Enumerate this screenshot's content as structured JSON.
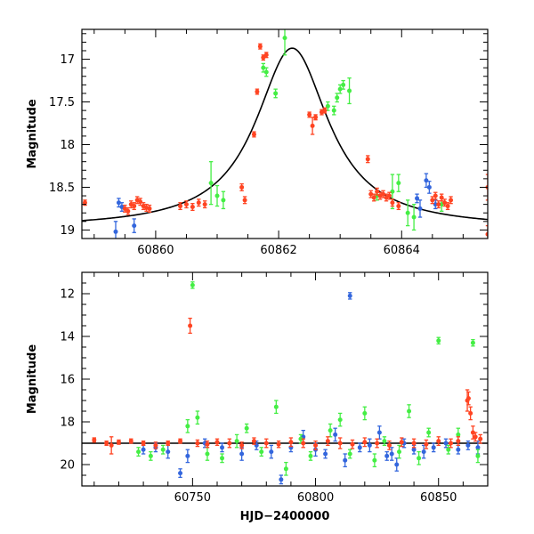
{
  "chart_data": [
    {
      "type": "scatter",
      "title": "",
      "xlabel": "",
      "ylabel": "Magnitude",
      "xlim": [
        60858.8,
        60865.4
      ],
      "ylim": [
        19.1,
        16.65
      ],
      "y_inverted": true,
      "grid": false,
      "legend": "none",
      "x_ticks": [
        "60860",
        "60862",
        "60864"
      ],
      "y_ticks": [
        "17",
        "17.5",
        "18",
        "18.5",
        "19"
      ],
      "model_curve": {
        "name": "",
        "color": "#000000",
        "peak_x": 60862.22,
        "peak_mag": 16.87,
        "baseline_mag": 18.98,
        "width_days": 0.72
      },
      "series": [
        {
          "color": "#3366dd",
          "points": [
            [
              60859.35,
              19.02,
              0.12
            ],
            [
              60859.4,
              18.68,
              0.05
            ],
            [
              60859.45,
              18.73,
              0.05
            ],
            [
              60859.65,
              18.95,
              0.08
            ],
            [
              60864.25,
              18.63,
              0.05
            ],
            [
              60864.3,
              18.75,
              0.1
            ],
            [
              60864.4,
              18.42,
              0.08
            ],
            [
              60864.45,
              18.5,
              0.07
            ],
            [
              60864.55,
              18.7,
              0.05
            ]
          ]
        },
        {
          "color": "#44ee44",
          "points": [
            [
              60860.9,
              18.45,
              0.25
            ],
            [
              60861.0,
              18.6,
              0.12
            ],
            [
              60861.1,
              18.65,
              0.1
            ],
            [
              60861.75,
              17.1,
              0.05
            ],
            [
              60861.8,
              17.15,
              0.05
            ],
            [
              60861.95,
              17.4,
              0.05
            ],
            [
              60862.1,
              16.75,
              0.2
            ],
            [
              60862.8,
              17.55,
              0.05
            ],
            [
              60862.9,
              17.6,
              0.05
            ],
            [
              60862.95,
              17.45,
              0.05
            ],
            [
              60863.0,
              17.35,
              0.05
            ],
            [
              60863.05,
              17.3,
              0.05
            ],
            [
              60863.15,
              17.37,
              0.15
            ],
            [
              60863.6,
              18.6,
              0.05
            ],
            [
              60863.85,
              18.55,
              0.2
            ],
            [
              60863.95,
              18.45,
              0.1
            ],
            [
              60864.1,
              18.8,
              0.15
            ],
            [
              60864.2,
              18.85,
              0.15
            ],
            [
              60864.65,
              18.7,
              0.08
            ]
          ]
        },
        {
          "color": "#ff4422",
          "points": [
            [
              60858.85,
              18.68,
              0.03
            ],
            [
              60859.5,
              18.75,
              0.04
            ],
            [
              60859.55,
              18.78,
              0.04
            ],
            [
              60859.6,
              18.7,
              0.04
            ],
            [
              60859.65,
              18.72,
              0.04
            ],
            [
              60859.7,
              18.65,
              0.04
            ],
            [
              60859.75,
              18.67,
              0.04
            ],
            [
              60859.8,
              18.72,
              0.04
            ],
            [
              60859.85,
              18.74,
              0.04
            ],
            [
              60859.9,
              18.75,
              0.04
            ],
            [
              60860.4,
              18.72,
              0.04
            ],
            [
              60860.5,
              18.7,
              0.04
            ],
            [
              60860.6,
              18.73,
              0.04
            ],
            [
              60860.7,
              18.68,
              0.04
            ],
            [
              60860.8,
              18.7,
              0.04
            ],
            [
              60861.4,
              18.5,
              0.04
            ],
            [
              60861.45,
              18.65,
              0.04
            ],
            [
              60861.6,
              17.88,
              0.03
            ],
            [
              60861.65,
              17.38,
              0.03
            ],
            [
              60861.7,
              16.85,
              0.03
            ],
            [
              60861.75,
              16.98,
              0.03
            ],
            [
              60861.8,
              16.95,
              0.03
            ],
            [
              60862.5,
              17.65,
              0.03
            ],
            [
              60862.55,
              17.78,
              0.1
            ],
            [
              60862.6,
              17.68,
              0.03
            ],
            [
              60862.7,
              17.62,
              0.03
            ],
            [
              60862.75,
              17.6,
              0.03
            ],
            [
              60863.45,
              18.17,
              0.04
            ],
            [
              60863.5,
              18.58,
              0.04
            ],
            [
              60863.55,
              18.62,
              0.04
            ],
            [
              60863.6,
              18.55,
              0.04
            ],
            [
              60863.65,
              18.6,
              0.04
            ],
            [
              60863.7,
              18.58,
              0.04
            ],
            [
              60863.75,
              18.62,
              0.04
            ],
            [
              60863.8,
              18.6,
              0.04
            ],
            [
              60863.85,
              18.68,
              0.04
            ],
            [
              60863.95,
              18.72,
              0.04
            ],
            [
              60864.5,
              18.65,
              0.04
            ],
            [
              60864.55,
              18.6,
              0.04
            ],
            [
              60864.6,
              18.7,
              0.04
            ],
            [
              60864.65,
              18.62,
              0.04
            ],
            [
              60864.7,
              18.68,
              0.04
            ],
            [
              60864.75,
              18.72,
              0.04
            ],
            [
              60864.8,
              18.65,
              0.04
            ],
            [
              60865.4,
              18.5,
              0.15
            ],
            [
              60865.4,
              19.05,
              0.1
            ]
          ]
        }
      ]
    },
    {
      "type": "scatter",
      "title": "",
      "xlabel": "HJD−2400000",
      "ylabel": "Magnitude",
      "xlim": [
        60705,
        60870
      ],
      "ylim": [
        21,
        11
      ],
      "y_inverted": true,
      "grid": false,
      "legend": "none",
      "x_ticks": [
        "60750",
        "60800",
        "60850"
      ],
      "y_ticks": [
        "12",
        "14",
        "16",
        "18",
        "20"
      ],
      "baseline_mag": 19.0,
      "series": [
        {
          "color": "#3366dd",
          "points": [
            [
              60730,
              19.3,
              0.2
            ],
            [
              60735,
              19.2,
              0.2
            ],
            [
              60740,
              19.4,
              0.3
            ],
            [
              60745,
              20.4,
              0.2
            ],
            [
              60748,
              19.6,
              0.3
            ],
            [
              60755,
              19.0,
              0.2
            ],
            [
              60762,
              19.2,
              0.2
            ],
            [
              60770,
              19.5,
              0.3
            ],
            [
              60776,
              19.1,
              0.2
            ],
            [
              60782,
              19.4,
              0.3
            ],
            [
              60786,
              20.7,
              0.2
            ],
            [
              60790,
              19.2,
              0.2
            ],
            [
              60795,
              18.7,
              0.3
            ],
            [
              60800,
              19.3,
              0.3
            ],
            [
              60804,
              19.5,
              0.2
            ],
            [
              60808,
              18.6,
              0.3
            ],
            [
              60812,
              19.8,
              0.3
            ],
            [
              60814,
              12.1,
              0.15
            ],
            [
              60818,
              19.2,
              0.2
            ],
            [
              60822,
              19.1,
              0.3
            ],
            [
              60826,
              18.5,
              0.3
            ],
            [
              60829,
              19.6,
              0.2
            ],
            [
              60831,
              19.5,
              0.3
            ],
            [
              60833,
              20.0,
              0.3
            ],
            [
              60836,
              19.0,
              0.2
            ],
            [
              60840,
              19.3,
              0.2
            ],
            [
              60844,
              19.4,
              0.3
            ],
            [
              60848,
              19.2,
              0.2
            ],
            [
              60853,
              19.0,
              0.2
            ],
            [
              60858,
              19.3,
              0.2
            ],
            [
              60862,
              19.1,
              0.2
            ],
            [
              60866,
              19.2,
              0.3
            ]
          ]
        },
        {
          "color": "#44ee44",
          "points": [
            [
              60728,
              19.4,
              0.2
            ],
            [
              60733,
              19.6,
              0.2
            ],
            [
              60738,
              19.3,
              0.2
            ],
            [
              60748,
              18.2,
              0.3
            ],
            [
              60750,
              11.6,
              0.15
            ],
            [
              60752,
              17.8,
              0.3
            ],
            [
              60756,
              19.5,
              0.3
            ],
            [
              60762,
              19.7,
              0.2
            ],
            [
              60768,
              18.9,
              0.3
            ],
            [
              60772,
              18.3,
              0.2
            ],
            [
              60778,
              19.4,
              0.2
            ],
            [
              60784,
              17.3,
              0.3
            ],
            [
              60788,
              20.2,
              0.3
            ],
            [
              60794,
              18.8,
              0.2
            ],
            [
              60798,
              19.6,
              0.2
            ],
            [
              60806,
              18.4,
              0.3
            ],
            [
              60810,
              17.9,
              0.3
            ],
            [
              60814,
              19.5,
              0.2
            ],
            [
              60820,
              17.6,
              0.3
            ],
            [
              60824,
              19.8,
              0.3
            ],
            [
              60828,
              18.9,
              0.2
            ],
            [
              60834,
              19.4,
              0.3
            ],
            [
              60838,
              17.5,
              0.3
            ],
            [
              60842,
              19.7,
              0.3
            ],
            [
              60846,
              18.5,
              0.2
            ],
            [
              60850,
              14.2,
              0.15
            ],
            [
              60854,
              19.3,
              0.2
            ],
            [
              60858,
              18.6,
              0.3
            ],
            [
              60864,
              14.3,
              0.15
            ],
            [
              60866,
              19.6,
              0.3
            ]
          ]
        },
        {
          "color": "#ff4422",
          "points": [
            [
              60710,
              18.85,
              0.1
            ],
            [
              60715,
              19.0,
              0.1
            ],
            [
              60717,
              19.1,
              0.4
            ],
            [
              60720,
              18.95,
              0.1
            ],
            [
              60725,
              18.9,
              0.1
            ],
            [
              60730,
              19.0,
              0.1
            ],
            [
              60735,
              19.1,
              0.15
            ],
            [
              60740,
              19.0,
              0.1
            ],
            [
              60745,
              18.9,
              0.1
            ],
            [
              60749,
              13.5,
              0.35
            ],
            [
              60752,
              19.0,
              0.15
            ],
            [
              60756,
              19.05,
              0.15
            ],
            [
              60760,
              18.95,
              0.15
            ],
            [
              60765,
              19.0,
              0.2
            ],
            [
              60770,
              19.1,
              0.15
            ],
            [
              60775,
              18.9,
              0.15
            ],
            [
              60780,
              19.0,
              0.2
            ],
            [
              60785,
              19.05,
              0.15
            ],
            [
              60790,
              18.95,
              0.2
            ],
            [
              60795,
              19.0,
              0.2
            ],
            [
              60800,
              19.1,
              0.2
            ],
            [
              60805,
              18.9,
              0.2
            ],
            [
              60810,
              19.0,
              0.25
            ],
            [
              60815,
              19.05,
              0.2
            ],
            [
              60820,
              18.95,
              0.2
            ],
            [
              60825,
              19.0,
              0.2
            ],
            [
              60830,
              19.1,
              0.2
            ],
            [
              60835,
              18.95,
              0.2
            ],
            [
              60840,
              19.0,
              0.2
            ],
            [
              60845,
              19.05,
              0.2
            ],
            [
              60850,
              18.9,
              0.2
            ],
            [
              60855,
              19.0,
              0.2
            ],
            [
              60858,
              18.9,
              0.2
            ],
            [
              60861.7,
              17.0,
              0.5
            ],
            [
              60862.2,
              16.9,
              0.3
            ],
            [
              60863,
              17.6,
              0.3
            ],
            [
              60864,
              18.5,
              0.3
            ],
            [
              60865,
              18.7,
              0.2
            ],
            [
              60867,
              18.8,
              0.2
            ]
          ]
        }
      ]
    }
  ]
}
